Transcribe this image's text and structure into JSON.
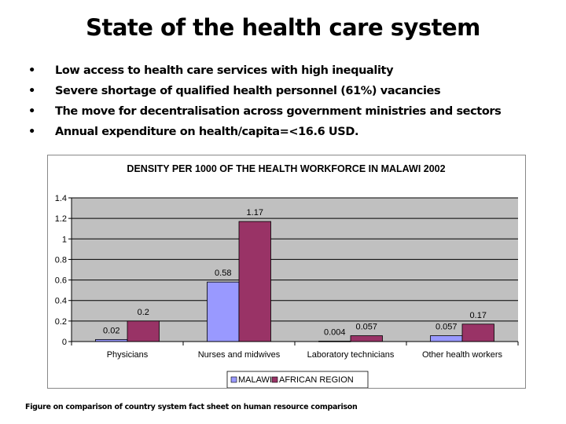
{
  "slide": {
    "title": "State of the health care system",
    "bullets": [
      "Low access to health care services with high inequality",
      "Severe shortage of qualified health personnel (61%) vacancies",
      "The move for decentralisation across government ministries and sectors",
      "Annual expenditure on health/capita=<16.6 USD."
    ],
    "bullet_glyph": "•",
    "caption": "Figure on comparison of country system fact sheet on human resource comparison"
  },
  "chart_data": {
    "type": "bar",
    "title": "DENSITY PER 1000 OF THE HEALTH WORKFORCE IN MALAWI 2002",
    "categories": [
      "Physicians",
      "Nurses and midwives",
      "Laboratory technicians",
      "Other health workers"
    ],
    "series": [
      {
        "name": "MALAWI",
        "values": [
          0.02,
          0.58,
          0.004,
          0.057
        ],
        "labels": [
          "0.02",
          "0.58",
          "0.004",
          "0.057"
        ],
        "color": "#9999ff"
      },
      {
        "name": "AFRICAN REGION",
        "values": [
          0.2,
          1.17,
          0.057,
          0.17
        ],
        "labels": [
          "0.2",
          "1.17",
          "0.057",
          "0.17"
        ],
        "color": "#993366"
      }
    ],
    "ylim": [
      0,
      1.4
    ],
    "yticks": [
      "0",
      "0.2",
      "0.4",
      "0.6",
      "0.8",
      "1",
      "1.2",
      "1.4"
    ],
    "grid": true,
    "plot_background": "#c0c0c0",
    "legend": "bottom"
  }
}
